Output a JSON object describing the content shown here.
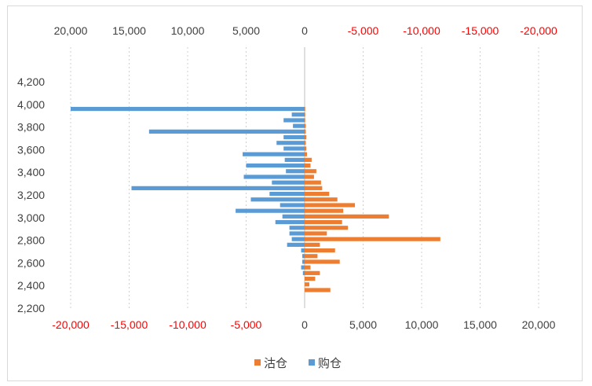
{
  "chart_data": {
    "type": "bar",
    "orientation": "horizontal",
    "ylim": [
      2200,
      4200
    ],
    "y_ticks": [
      "2,200",
      "2,400",
      "2,600",
      "2,800",
      "3,000",
      "3,200",
      "3,400",
      "3,600",
      "3,800",
      "4,000",
      "4,200"
    ],
    "x_ticks_bottom": [
      "-20,000",
      "-15,000",
      "-10,000",
      "-5,000",
      "0",
      "5,000",
      "10,000",
      "15,000",
      "20,000"
    ],
    "x_ticks_top": [
      "20,000",
      "15,000",
      "10,000",
      "5,000",
      "0",
      "-5,000",
      "-10,000",
      "-15,000",
      "-20,000"
    ],
    "xlim": [
      -20000,
      20000
    ],
    "grid": "vertical dotted",
    "legend_position": "bottom",
    "colors": {
      "sell": "#ED7D31",
      "buy": "#5B9BD5",
      "negative_tick": "#FF0000",
      "tick": "#404040"
    },
    "series": [
      {
        "name": "沽仓",
        "color": "#ED7D31",
        "y": [
          3960,
          3910,
          3860,
          3810,
          3760,
          3710,
          3660,
          3610,
          3560,
          3510,
          3460,
          3410,
          3360,
          3310,
          3260,
          3210,
          3160,
          3110,
          3060,
          3010,
          2960,
          2910,
          2860,
          2810,
          2760,
          2710,
          2660,
          2610,
          2560,
          2510,
          2460,
          2410,
          2360
        ],
        "values": [
          50,
          50,
          50,
          100,
          100,
          150,
          100,
          150,
          200,
          600,
          500,
          1000,
          800,
          1400,
          1500,
          2100,
          2800,
          4300,
          3300,
          7200,
          3200,
          3700,
          1900,
          11600,
          1300,
          2600,
          1100,
          3000,
          500,
          1300,
          900,
          400,
          2200
        ]
      },
      {
        "name": "购仓",
        "color": "#5B9BD5",
        "y": [
          3960,
          3910,
          3860,
          3810,
          3760,
          3710,
          3660,
          3610,
          3560,
          3510,
          3460,
          3410,
          3360,
          3310,
          3260,
          3210,
          3160,
          3110,
          3060,
          3010,
          2960,
          2910,
          2860,
          2810,
          2760,
          2710,
          2660,
          2610,
          2560,
          2510,
          2460,
          2410,
          2360
        ],
        "values": [
          20000,
          1100,
          1800,
          1000,
          13300,
          1800,
          2400,
          1800,
          5300,
          1700,
          5000,
          1600,
          5200,
          2800,
          14800,
          3000,
          4600,
          2100,
          5900,
          1900,
          2500,
          1300,
          1300,
          1100,
          1500,
          300,
          200,
          200,
          300,
          150,
          0,
          0,
          0
        ]
      }
    ]
  }
}
